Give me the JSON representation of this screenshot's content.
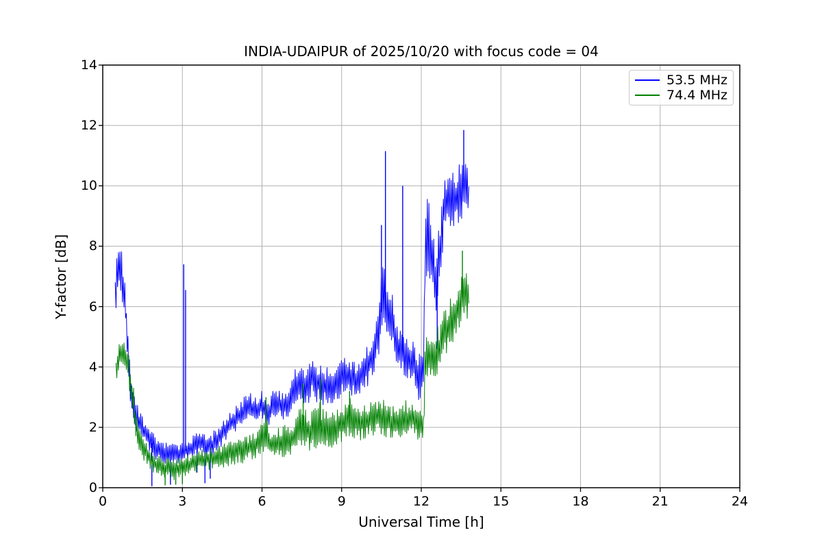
{
  "chart_data": {
    "type": "line",
    "title": "INDIA-UDAIPUR of 2025/10/20 with focus code = 04",
    "xlabel": "Universal Time [h]",
    "ylabel": "Y-factor [dB]",
    "xlim": [
      0,
      24
    ],
    "ylim": [
      0,
      14
    ],
    "xticks": [
      0,
      3,
      6,
      9,
      12,
      15,
      18,
      21,
      24
    ],
    "yticks": [
      0,
      2,
      4,
      6,
      8,
      10,
      12,
      14
    ],
    "grid": true,
    "grid_color": "#b0b0b0",
    "legend_position": "upper right",
    "envelope_format": "[hour, min_dB, max_dB] samples of the noisy trace band; spikes are [hour, peak_dB]",
    "series": [
      {
        "name": "53.5 MHz",
        "color": "#0000ff",
        "envelope": [
          [
            0.47,
            4.8,
            6.8
          ],
          [
            0.55,
            6.3,
            7.9
          ],
          [
            0.65,
            6.8,
            8.1
          ],
          [
            0.75,
            5.6,
            8.0
          ],
          [
            0.85,
            5.3,
            6.6
          ],
          [
            0.95,
            3.8,
            5.6
          ],
          [
            1.05,
            2.6,
            3.9
          ],
          [
            1.2,
            2.0,
            3.0
          ],
          [
            1.4,
            1.7,
            2.6
          ],
          [
            1.6,
            1.4,
            2.2
          ],
          [
            1.8,
            1.1,
            2.0
          ],
          [
            2.0,
            0.9,
            1.7
          ],
          [
            2.3,
            0.8,
            1.5
          ],
          [
            2.6,
            0.8,
            1.5
          ],
          [
            2.9,
            0.8,
            1.4
          ],
          [
            3.0,
            0.9,
            1.5
          ],
          [
            3.2,
            0.9,
            1.6
          ],
          [
            3.5,
            1.0,
            1.8
          ],
          [
            3.7,
            1.1,
            1.9
          ],
          [
            3.9,
            0.9,
            1.7
          ],
          [
            4.1,
            1.0,
            1.8
          ],
          [
            4.3,
            1.2,
            2.0
          ],
          [
            4.6,
            1.5,
            2.3
          ],
          [
            4.9,
            1.8,
            2.6
          ],
          [
            5.2,
            2.0,
            2.9
          ],
          [
            5.5,
            2.2,
            3.2
          ],
          [
            5.7,
            2.1,
            3.0
          ],
          [
            6.0,
            2.3,
            3.2
          ],
          [
            6.2,
            2.0,
            2.9
          ],
          [
            6.5,
            2.3,
            3.4
          ],
          [
            6.8,
            2.2,
            3.2
          ],
          [
            7.1,
            2.4,
            3.6
          ],
          [
            7.4,
            2.8,
            4.3
          ],
          [
            7.6,
            2.6,
            3.9
          ],
          [
            7.9,
            2.9,
            4.5
          ],
          [
            8.1,
            2.8,
            4.2
          ],
          [
            8.4,
            2.7,
            4.0
          ],
          [
            8.7,
            2.7,
            3.9
          ],
          [
            9.0,
            3.0,
            4.4
          ],
          [
            9.3,
            3.1,
            4.4
          ],
          [
            9.6,
            2.9,
            4.1
          ],
          [
            9.9,
            3.2,
            4.6
          ],
          [
            10.2,
            3.6,
            5.2
          ],
          [
            10.45,
            4.2,
            7.0
          ],
          [
            10.6,
            4.5,
            8.0
          ],
          [
            10.75,
            4.6,
            6.5
          ],
          [
            10.9,
            4.8,
            6.6
          ],
          [
            11.05,
            4.0,
            5.6
          ],
          [
            11.2,
            3.8,
            5.3
          ],
          [
            11.45,
            3.6,
            5.2
          ],
          [
            11.7,
            3.3,
            5.0
          ],
          [
            11.95,
            2.8,
            4.4
          ],
          [
            12.08,
            3.0,
            4.5
          ],
          [
            12.15,
            6.6,
            9.3
          ],
          [
            12.25,
            7.0,
            9.9
          ],
          [
            12.4,
            6.5,
            9.0
          ],
          [
            12.55,
            5.3,
            7.6
          ],
          [
            12.7,
            6.5,
            9.0
          ],
          [
            12.85,
            8.2,
            10.3
          ],
          [
            13.0,
            8.6,
            10.6
          ],
          [
            13.15,
            8.3,
            10.4
          ],
          [
            13.3,
            8.6,
            10.6
          ],
          [
            13.45,
            8.8,
            10.8
          ],
          [
            13.6,
            9.0,
            11.3
          ],
          [
            13.7,
            8.8,
            10.7
          ],
          [
            13.8,
            8.7,
            10.4
          ]
        ],
        "spikes": [
          [
            1.85,
            0.05
          ],
          [
            2.55,
            0.1
          ],
          [
            3.05,
            7.4
          ],
          [
            3.12,
            6.55
          ],
          [
            3.55,
            0.5
          ],
          [
            3.85,
            0.15
          ],
          [
            4.05,
            0.3
          ],
          [
            10.5,
            8.7
          ],
          [
            10.65,
            11.15
          ],
          [
            11.3,
            10.0
          ],
          [
            12.6,
            4.6
          ],
          [
            13.6,
            11.85
          ]
        ]
      },
      {
        "name": "74.4 MHz",
        "color": "#008000",
        "envelope": [
          [
            0.5,
            3.2,
            4.2
          ],
          [
            0.6,
            3.8,
            4.8
          ],
          [
            0.7,
            4.0,
            5.0
          ],
          [
            0.8,
            3.9,
            4.8
          ],
          [
            0.95,
            3.7,
            4.7
          ],
          [
            1.05,
            2.7,
            4.2
          ],
          [
            1.2,
            1.8,
            3.0
          ],
          [
            1.4,
            1.1,
            2.0
          ],
          [
            1.6,
            0.8,
            1.6
          ],
          [
            1.8,
            0.6,
            1.3
          ],
          [
            2.0,
            0.4,
            1.1
          ],
          [
            2.3,
            0.28,
            1.0
          ],
          [
            2.6,
            0.25,
            1.0
          ],
          [
            2.9,
            0.3,
            1.0
          ],
          [
            3.2,
            0.4,
            1.1
          ],
          [
            3.5,
            0.5,
            1.2
          ],
          [
            3.8,
            0.55,
            1.3
          ],
          [
            4.1,
            0.6,
            1.4
          ],
          [
            4.4,
            0.65,
            1.4
          ],
          [
            4.7,
            0.7,
            1.5
          ],
          [
            5.0,
            0.75,
            1.6
          ],
          [
            5.3,
            0.8,
            1.7
          ],
          [
            5.6,
            0.9,
            1.8
          ],
          [
            5.9,
            1.0,
            2.0
          ],
          [
            6.1,
            1.1,
            2.6
          ],
          [
            6.3,
            0.9,
            1.9
          ],
          [
            6.6,
            1.0,
            2.0
          ],
          [
            6.9,
            1.0,
            2.1
          ],
          [
            7.2,
            1.1,
            2.3
          ],
          [
            7.5,
            1.3,
            2.9
          ],
          [
            7.8,
            1.2,
            2.5
          ],
          [
            8.1,
            1.3,
            2.9
          ],
          [
            8.4,
            1.2,
            2.6
          ],
          [
            8.7,
            1.3,
            2.5
          ],
          [
            9.0,
            1.5,
            2.7
          ],
          [
            9.3,
            1.6,
            3.1
          ],
          [
            9.6,
            1.5,
            2.8
          ],
          [
            9.9,
            1.6,
            2.8
          ],
          [
            10.2,
            1.7,
            2.9
          ],
          [
            10.5,
            1.7,
            3.0
          ],
          [
            10.8,
            1.6,
            2.8
          ],
          [
            11.1,
            1.6,
            2.7
          ],
          [
            11.4,
            1.6,
            2.9
          ],
          [
            11.7,
            1.7,
            3.0
          ],
          [
            11.95,
            1.5,
            2.7
          ],
          [
            12.08,
            1.5,
            2.6
          ],
          [
            12.15,
            3.5,
            5.0
          ],
          [
            12.3,
            3.7,
            5.3
          ],
          [
            12.5,
            3.4,
            5.2
          ],
          [
            12.7,
            3.8,
            5.5
          ],
          [
            12.9,
            4.3,
            6.0
          ],
          [
            13.1,
            4.6,
            6.3
          ],
          [
            13.3,
            4.9,
            6.6
          ],
          [
            13.5,
            5.2,
            7.2
          ],
          [
            13.65,
            5.5,
            7.5
          ],
          [
            13.8,
            5.6,
            7.2
          ]
        ],
        "spikes": [
          [
            2.35,
            0.08
          ],
          [
            2.75,
            0.1
          ],
          [
            3.0,
            0.12
          ],
          [
            6.15,
            3.0
          ],
          [
            7.55,
            3.45
          ],
          [
            8.2,
            3.6
          ],
          [
            9.3,
            3.2
          ],
          [
            13.55,
            7.85
          ]
        ]
      }
    ]
  }
}
